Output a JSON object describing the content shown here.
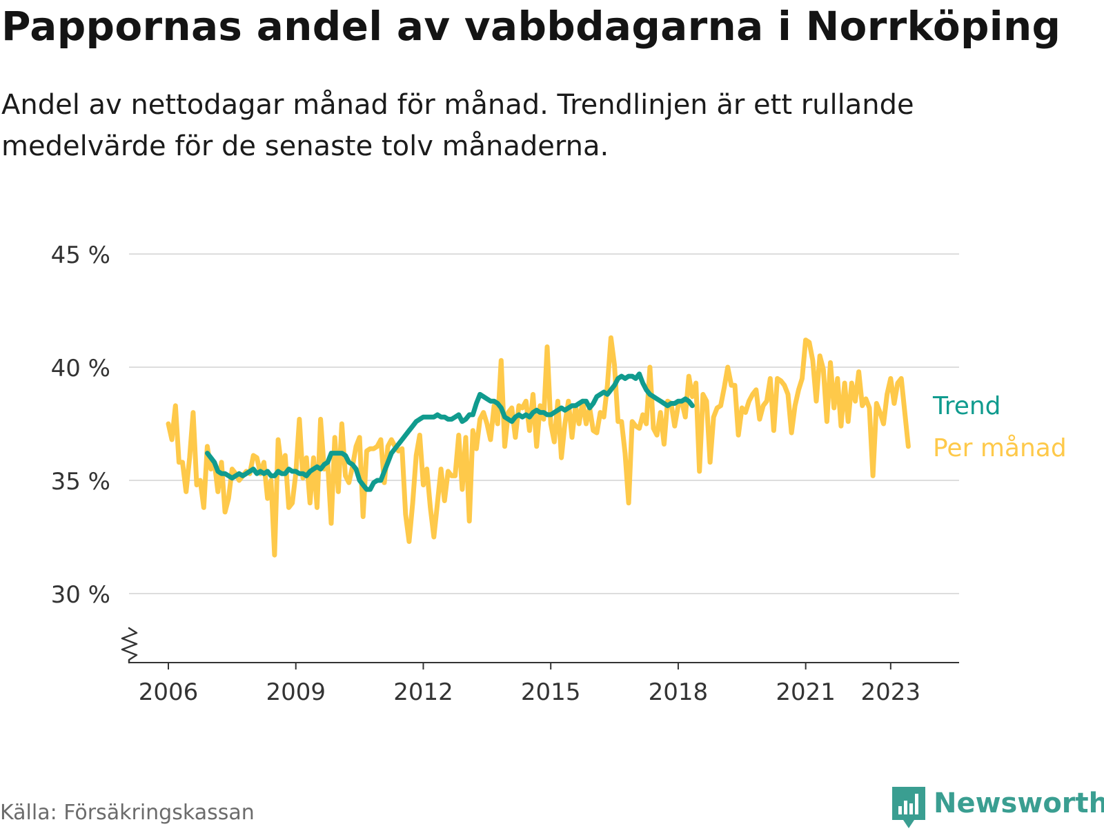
{
  "title": "Pappornas andel av vabbdagarna i Norrköping",
  "subtitle": "Andel av nettodagar månad för månad. Trendlinjen är ett rullande medelvärde för de senaste tolv månaderna.",
  "source": "Källa: Försäkringskassan",
  "brand": "Newsworthy",
  "colors": {
    "monthly": "#fec94a",
    "trend": "#109b8e",
    "grid": "#dddddd",
    "axis": "#333333",
    "brand": "#3a9e91"
  },
  "chart_data": {
    "type": "line",
    "xlim": [
      2006,
      2023.75
    ],
    "ylim": [
      27,
      45
    ],
    "y_ticks": [
      30,
      35,
      40,
      45
    ],
    "y_tick_labels": [
      "30 %",
      "35 %",
      "40 %",
      "45 %"
    ],
    "x_ticks": [
      2006,
      2009,
      2012,
      2015,
      2018,
      2021,
      2023
    ],
    "x_tick_labels": [
      "2006",
      "2009",
      "2012",
      "2015",
      "2018",
      "2021",
      "2023"
    ],
    "y_axis_break": true,
    "grid": true,
    "legend": "inline labels at line ends (right)",
    "series": [
      {
        "name": "Per månad",
        "color": "#fec94a",
        "x_start": 2006.0,
        "x_step": 0.08333,
        "values": [
          37.5,
          36.8,
          38.3,
          35.8,
          35.8,
          34.5,
          36.0,
          38.0,
          34.8,
          35.0,
          33.8,
          36.5,
          35.5,
          35.8,
          34.5,
          35.8,
          33.6,
          34.2,
          35.5,
          35.3,
          35.0,
          35.2,
          35.4,
          35.3,
          36.1,
          36.0,
          35.3,
          35.8,
          34.2,
          35.0,
          31.7,
          36.8,
          35.5,
          36.1,
          33.8,
          34.0,
          35.3,
          37.7,
          35.1,
          36.0,
          34.0,
          36.0,
          33.8,
          37.7,
          35.5,
          35.8,
          33.1,
          36.9,
          34.5,
          37.5,
          35.2,
          34.9,
          35.6,
          36.5,
          36.9,
          33.4,
          36.3,
          36.4,
          36.4,
          36.5,
          36.8,
          34.9,
          36.5,
          36.8,
          36.5,
          36.3,
          36.4,
          33.5,
          32.3,
          34.0,
          36.1,
          37.0,
          34.8,
          35.5,
          33.8,
          32.5,
          34.0,
          35.5,
          34.1,
          35.4,
          35.2,
          35.2,
          37.0,
          34.6,
          36.9,
          33.2,
          37.2,
          36.4,
          37.7,
          38.0,
          37.5,
          36.8,
          38.3,
          37.5,
          40.3,
          36.5,
          38.0,
          38.2,
          36.9,
          38.3,
          38.2,
          38.5,
          37.2,
          38.8,
          36.5,
          38.3,
          37.7,
          40.9,
          37.5,
          36.7,
          38.5,
          36.0,
          37.5,
          38.5,
          36.9,
          38.3,
          37.5,
          38.5,
          37.5,
          38.2,
          37.2,
          37.1,
          38.0,
          37.8,
          39.2,
          41.3,
          40.1,
          37.6,
          37.6,
          36.2,
          34.0,
          37.6,
          37.4,
          37.3,
          37.9,
          37.5,
          40.0,
          37.3,
          37.0,
          38.0,
          36.6,
          38.5,
          38.4,
          37.4,
          38.3,
          38.5,
          37.8,
          39.6,
          38.7,
          39.3,
          35.4,
          38.8,
          38.5,
          35.8,
          37.8,
          38.2,
          38.3,
          39.1,
          40.0,
          39.2,
          39.2,
          37.0,
          38.2,
          38.0,
          38.5,
          38.8,
          39.0,
          37.7,
          38.3,
          38.5,
          39.5,
          37.2,
          39.5,
          39.4,
          39.2,
          38.8,
          37.1,
          38.3,
          39.0,
          39.5,
          41.2,
          41.1,
          40.3,
          38.5,
          40.5,
          39.9,
          37.6,
          40.2,
          38.2,
          39.5,
          37.4,
          39.3,
          37.6,
          39.3,
          38.5,
          39.8,
          38.3,
          38.6,
          38.2,
          35.2,
          38.4,
          38.0,
          37.5,
          38.8,
          39.5,
          38.4,
          39.3,
          39.5,
          38.0,
          36.5
        ]
      },
      {
        "name": "Trend",
        "color": "#109b8e",
        "x_start": 2006.917,
        "x_step": 0.08333,
        "values": [
          36.2,
          36.0,
          35.8,
          35.4,
          35.3,
          35.3,
          35.2,
          35.1,
          35.2,
          35.3,
          35.2,
          35.3,
          35.4,
          35.5,
          35.3,
          35.4,
          35.3,
          35.4,
          35.2,
          35.2,
          35.4,
          35.3,
          35.3,
          35.5,
          35.4,
          35.4,
          35.3,
          35.3,
          35.2,
          35.4,
          35.5,
          35.6,
          35.5,
          35.7,
          35.8,
          36.2,
          36.2,
          36.2,
          36.2,
          36.1,
          35.8,
          35.7,
          35.5,
          35.0,
          34.8,
          34.6,
          34.6,
          34.9,
          35.0,
          35.0,
          35.4,
          35.8,
          36.2,
          36.4,
          36.6,
          36.8,
          37.0,
          37.2,
          37.4,
          37.6,
          37.7,
          37.8,
          37.8,
          37.8,
          37.8,
          37.9,
          37.8,
          37.8,
          37.7,
          37.7,
          37.8,
          37.9,
          37.6,
          37.7,
          37.9,
          37.9,
          38.4,
          38.8,
          38.7,
          38.6,
          38.5,
          38.5,
          38.4,
          38.2,
          37.8,
          37.7,
          37.6,
          37.8,
          37.9,
          37.8,
          37.9,
          37.8,
          38.0,
          38.1,
          38.0,
          38.0,
          37.9,
          37.9,
          38.0,
          38.1,
          38.2,
          38.1,
          38.2,
          38.3,
          38.3,
          38.4,
          38.5,
          38.5,
          38.2,
          38.4,
          38.7,
          38.8,
          38.9,
          38.8,
          39.0,
          39.2,
          39.5,
          39.6,
          39.5,
          39.6,
          39.6,
          39.5,
          39.7,
          39.3,
          39.0,
          38.8,
          38.7,
          38.6,
          38.5,
          38.4,
          38.3,
          38.4,
          38.4,
          38.5,
          38.5,
          38.6,
          38.5,
          38.3
        ]
      }
    ]
  }
}
